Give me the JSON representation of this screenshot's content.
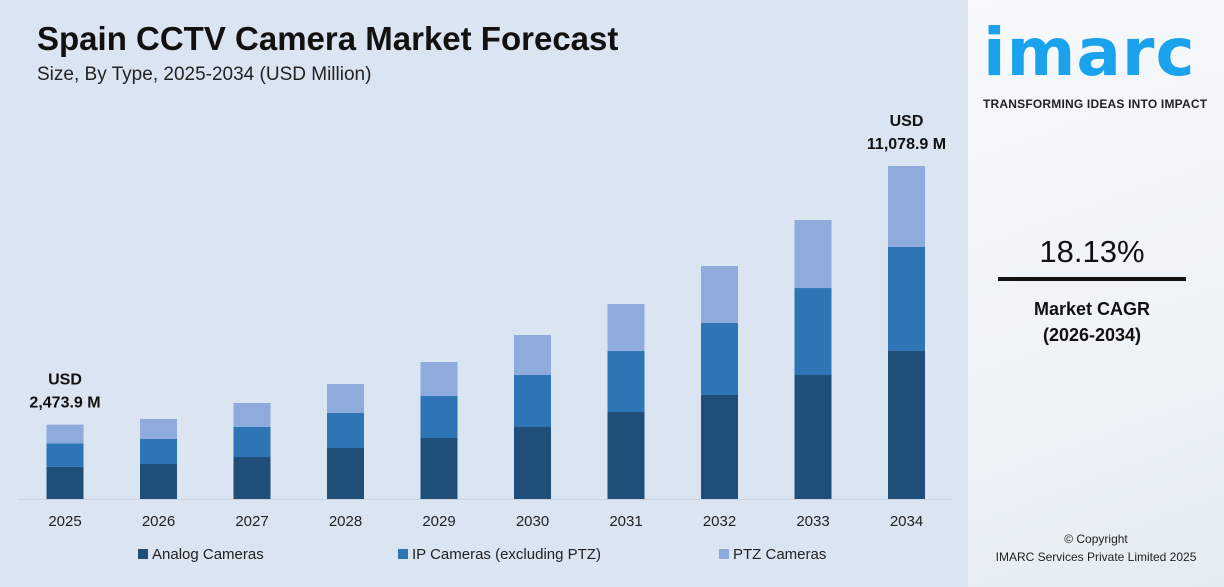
{
  "chart_data": {
    "type": "bar",
    "stacked": true,
    "title": "Spain CCTV Camera Market Forecast",
    "subtitle": "Size, By Type, 2025-2034 (USD Million)",
    "categories": [
      "2025",
      "2026",
      "2027",
      "2028",
      "2029",
      "2030",
      "2031",
      "2032",
      "2033",
      "2034"
    ],
    "series": [
      {
        "name": "Analog Cameras",
        "color": "#1f4e79",
        "values": [
          1070,
          1164,
          1397,
          1697,
          2029,
          2395,
          2894,
          3460,
          4125,
          4924
        ]
      },
      {
        "name": "IP Cameras (excluding PTZ)",
        "color": "#2e75b6",
        "values": [
          776,
          832,
          998,
          1164,
          1397,
          1730,
          2029,
          2395,
          2894,
          3460
        ]
      },
      {
        "name": "PTZ Cameras",
        "color": "#8faadc",
        "values": [
          628,
          665,
          798,
          965,
          1131,
          1331,
          1564,
          1896,
          2262,
          2695
        ]
      }
    ],
    "ylim": [
      0,
      11078.9
    ],
    "grid": false,
    "legend_position": "bottom",
    "annotations": [
      {
        "category": "2025",
        "line1": "USD",
        "line2": "2,473.9 M"
      },
      {
        "category": "2034",
        "line1": "USD",
        "line2": "11,078.9 M"
      }
    ]
  },
  "brand": {
    "logo": "imarc",
    "tagline": "TRANSFORMING IDEAS INTO IMPACT",
    "color": "#1aa3ec"
  },
  "cagr": {
    "value": "18.13%",
    "label1": "Market CAGR",
    "label2": "(2026-2034)"
  },
  "footer": {
    "copyright": "© Copyright",
    "company": "IMARC Services Private Limited 2025"
  }
}
